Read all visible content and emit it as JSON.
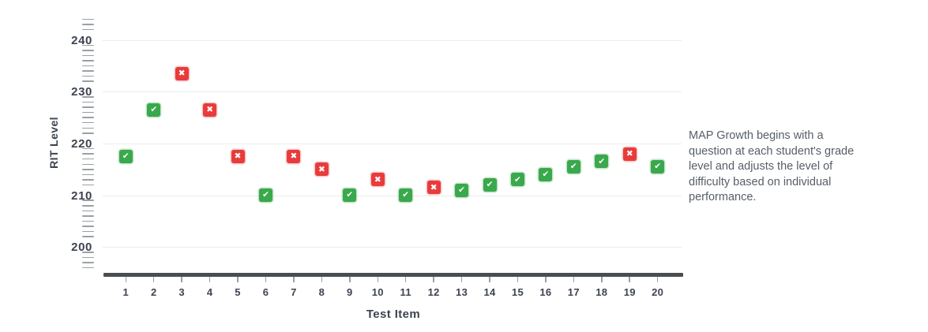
{
  "window": {
    "background": "#ffffff"
  },
  "chart_data": {
    "type": "scatter",
    "title": "",
    "xlabel": "Test Item",
    "ylabel": "RIT Level",
    "x_ticks": [
      1,
      2,
      3,
      4,
      5,
      6,
      7,
      8,
      9,
      10,
      11,
      12,
      13,
      14,
      15,
      16,
      17,
      18,
      19,
      20
    ],
    "y_ticks": [
      200,
      210,
      220,
      230,
      240
    ],
    "ylim": [
      195,
      244
    ],
    "grid": "horizontal-light-gray",
    "legend": "none",
    "points": [
      {
        "item": 1,
        "rit": 217.5,
        "result": "correct"
      },
      {
        "item": 2,
        "rit": 226.5,
        "result": "correct"
      },
      {
        "item": 3,
        "rit": 233.5,
        "result": "incorrect"
      },
      {
        "item": 4,
        "rit": 226.5,
        "result": "incorrect"
      },
      {
        "item": 5,
        "rit": 217.5,
        "result": "incorrect"
      },
      {
        "item": 6,
        "rit": 210,
        "result": "correct"
      },
      {
        "item": 7,
        "rit": 217.5,
        "result": "incorrect"
      },
      {
        "item": 8,
        "rit": 215,
        "result": "incorrect"
      },
      {
        "item": 9,
        "rit": 210,
        "result": "correct"
      },
      {
        "item": 10,
        "rit": 213,
        "result": "incorrect"
      },
      {
        "item": 11,
        "rit": 210,
        "result": "correct"
      },
      {
        "item": 12,
        "rit": 211.5,
        "result": "incorrect"
      },
      {
        "item": 13,
        "rit": 211,
        "result": "correct"
      },
      {
        "item": 14,
        "rit": 212,
        "result": "correct"
      },
      {
        "item": 15,
        "rit": 213,
        "result": "correct"
      },
      {
        "item": 16,
        "rit": 214,
        "result": "correct"
      },
      {
        "item": 17,
        "rit": 215.5,
        "result": "correct"
      },
      {
        "item": 18,
        "rit": 216.5,
        "result": "correct"
      },
      {
        "item": 19,
        "rit": 218,
        "result": "incorrect"
      },
      {
        "item": 20,
        "rit": 215.5,
        "result": "correct"
      }
    ],
    "series": [
      {
        "name": "correct",
        "marker": "check",
        "color": "#3aa84c",
        "items": [
          1,
          2,
          6,
          9,
          11,
          13,
          14,
          15,
          16,
          17,
          18,
          20
        ]
      },
      {
        "name": "incorrect",
        "marker": "x",
        "color": "#e83b3b",
        "items": [
          3,
          4,
          5,
          7,
          8,
          10,
          12,
          19
        ]
      }
    ]
  },
  "icons": {
    "check": "✔",
    "x": "✖"
  },
  "colors": {
    "correct_green": "#3aa84c",
    "incorrect_red": "#e83b3b",
    "axis_text": "#3d4450",
    "grid_line": "#eaebec",
    "ruler_tick": "#9aa0a4",
    "axis_bar": "#4a4d50",
    "note_text": "#575e68"
  },
  "note": {
    "text": "MAP Growth begins with a question at each student's grade level and adjusts the level of difficulty based on individual performance.",
    "lines": [
      "MAP Growth begins with a",
      "question at each student's grade",
      "level and adjusts the level of",
      "difficulty based on individual",
      "performance."
    ]
  }
}
